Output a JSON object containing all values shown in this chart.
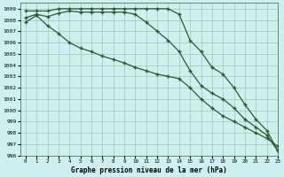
{
  "title": "Graphe pression niveau de la mer (hPa)",
  "bg_color": "#cef0f0",
  "grid_color": "#99ccaa",
  "line_color": "#2d5a2d",
  "marker": "+",
  "xlim": [
    -0.5,
    23
  ],
  "ylim": [
    996,
    1009.5
  ],
  "xticks": [
    0,
    1,
    2,
    3,
    4,
    5,
    6,
    7,
    8,
    9,
    10,
    11,
    12,
    13,
    14,
    15,
    16,
    17,
    18,
    19,
    20,
    21,
    22,
    23
  ],
  "yticks": [
    996,
    997,
    998,
    999,
    1000,
    1001,
    1002,
    1003,
    1004,
    1005,
    1006,
    1007,
    1008,
    1009
  ],
  "line1": [
    1008.8,
    1008.8,
    1008.8,
    1009.0,
    1009.0,
    1009.0,
    1009.0,
    1009.0,
    1009.0,
    1009.0,
    1009.0,
    1009.0,
    1009.0,
    1009.0,
    1008.5,
    1006.2,
    1005.2,
    1003.8,
    1003.2,
    1002.0,
    1000.5,
    999.2,
    998.2,
    996.4
  ],
  "line2": [
    1008.2,
    1008.5,
    1008.3,
    1008.6,
    1008.8,
    1008.7,
    1008.7,
    1008.7,
    1008.7,
    1008.7,
    1008.5,
    1007.8,
    1007.0,
    1006.2,
    1005.2,
    1003.5,
    1002.2,
    1001.5,
    1001.0,
    1000.2,
    999.2,
    998.5,
    997.8,
    996.4
  ],
  "line3": [
    1007.8,
    1008.4,
    1007.5,
    1006.8,
    1006.0,
    1005.5,
    1005.2,
    1004.8,
    1004.5,
    1004.2,
    1003.8,
    1003.5,
    1003.2,
    1003.0,
    1002.8,
    1002.0,
    1001.0,
    1000.2,
    999.5,
    999.0,
    998.5,
    998.0,
    997.5,
    996.8
  ]
}
